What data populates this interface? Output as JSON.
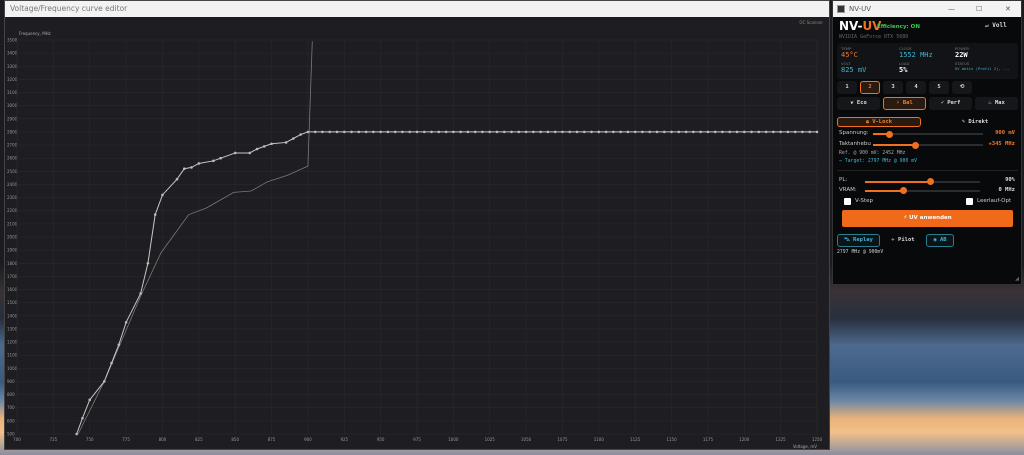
{
  "editor": {
    "title": "Voltage/Frequency curve editor",
    "oc_scanner": "OC Scanner"
  },
  "chart_data": {
    "type": "line",
    "xlabel": "Voltage, mV",
    "ylabel": "Frequency, MHz",
    "xlim": [
      700,
      1250
    ],
    "ylim": [
      500,
      3500
    ],
    "x_ticks": [
      700,
      725,
      750,
      775,
      800,
      825,
      850,
      875,
      900,
      925,
      950,
      975,
      1000,
      1025,
      1050,
      1075,
      1100,
      1125,
      1150,
      1175,
      1200,
      1225,
      1250
    ],
    "y_ticks": [
      500,
      600,
      700,
      800,
      900,
      1000,
      1100,
      1200,
      1300,
      1400,
      1500,
      1600,
      1700,
      1800,
      1900,
      2000,
      2100,
      2200,
      2300,
      2400,
      2500,
      2600,
      2700,
      2800,
      2900,
      3000,
      3100,
      3200,
      3300,
      3400,
      3500
    ],
    "grid": true,
    "series": [
      {
        "points": [
          [
            741,
            500
          ],
          [
            745,
            620
          ],
          [
            750,
            760
          ],
          [
            760,
            900
          ],
          [
            765,
            1040
          ],
          [
            770,
            1180
          ],
          [
            775,
            1350
          ],
          [
            785,
            1570
          ],
          [
            790,
            1800
          ],
          [
            795,
            2170
          ],
          [
            800,
            2320
          ],
          [
            810,
            2440
          ],
          [
            815,
            2520
          ],
          [
            820,
            2530
          ],
          [
            825,
            2560
          ],
          [
            835,
            2580
          ],
          [
            840,
            2600
          ],
          [
            850,
            2640
          ],
          [
            860,
            2640
          ],
          [
            865,
            2670
          ],
          [
            870,
            2690
          ],
          [
            875,
            2710
          ],
          [
            885,
            2720
          ],
          [
            890,
            2750
          ],
          [
            895,
            2780
          ],
          [
            900,
            2800
          ]
        ],
        "flat_to": 1250,
        "flat_value": 2800,
        "color": "#c8c8c8"
      },
      {
        "points": [
          [
            742,
            500
          ],
          [
            760,
            900
          ],
          [
            785,
            1550
          ],
          [
            799,
            1880
          ],
          [
            818,
            2170
          ],
          [
            830,
            2220
          ],
          [
            849,
            2340
          ],
          [
            861,
            2350
          ],
          [
            872,
            2420
          ],
          [
            886,
            2470
          ],
          [
            900,
            2540
          ],
          [
            903,
            3490
          ]
        ],
        "color": "#7a7a7a"
      }
    ]
  },
  "app": {
    "window_title": "NV-UV",
    "brand_nv": "NV-",
    "brand_uv": "UV",
    "efficiency": "Efficiency: ON",
    "mode_label": "Voll",
    "gpu": "NVIDIA GeForce RTX 5080",
    "stats": {
      "temp_label": "TEMP",
      "temp": "45°C",
      "clock_label": "CLOCK",
      "clock": "1552 MHz",
      "power_label": "POWER",
      "power": "22W",
      "volt_label": "VOLT",
      "volt": "825 mV",
      "load_label": "LOAD",
      "load": "5%",
      "status_label": "STATUS",
      "status": "UV aktiv (Profil 2), ..."
    },
    "profiles": [
      "1",
      "2",
      "3",
      "4",
      "5",
      "⟲"
    ],
    "selected_profile": "2",
    "modes": [
      "Eco",
      "Bal",
      "Perf",
      "Max"
    ],
    "selected_mode": "Bal",
    "vlock": "V-Lock",
    "direkt": "Direkt",
    "spannung": {
      "label": "Spannung:",
      "value": "900 mV",
      "level": 0.13
    },
    "takt": {
      "label": "Taktanhebu",
      "value": "+345 MHz",
      "level": 0.5
    },
    "ref": "Ref. @ 900 mV: 2452 MHz",
    "target": "→ Target: 2797 MHz @ 900 mV",
    "pl": {
      "label": "PL:",
      "value": "90%",
      "level": 0.6
    },
    "vram": {
      "label": "VRAM:",
      "value": "0 MHz",
      "level": 0.28
    },
    "vstep": "V-Step",
    "leerlauf": "Leerlauf-Opt",
    "apply": "UV anwenden",
    "replay": "Replay",
    "pilot": "Pilot",
    "ab": "AB",
    "footer": "2797 MHz @ 900mV",
    "colors": {
      "accent": "#f07020",
      "cyan": "#3fb6d0",
      "green": "#3ec94a"
    }
  }
}
